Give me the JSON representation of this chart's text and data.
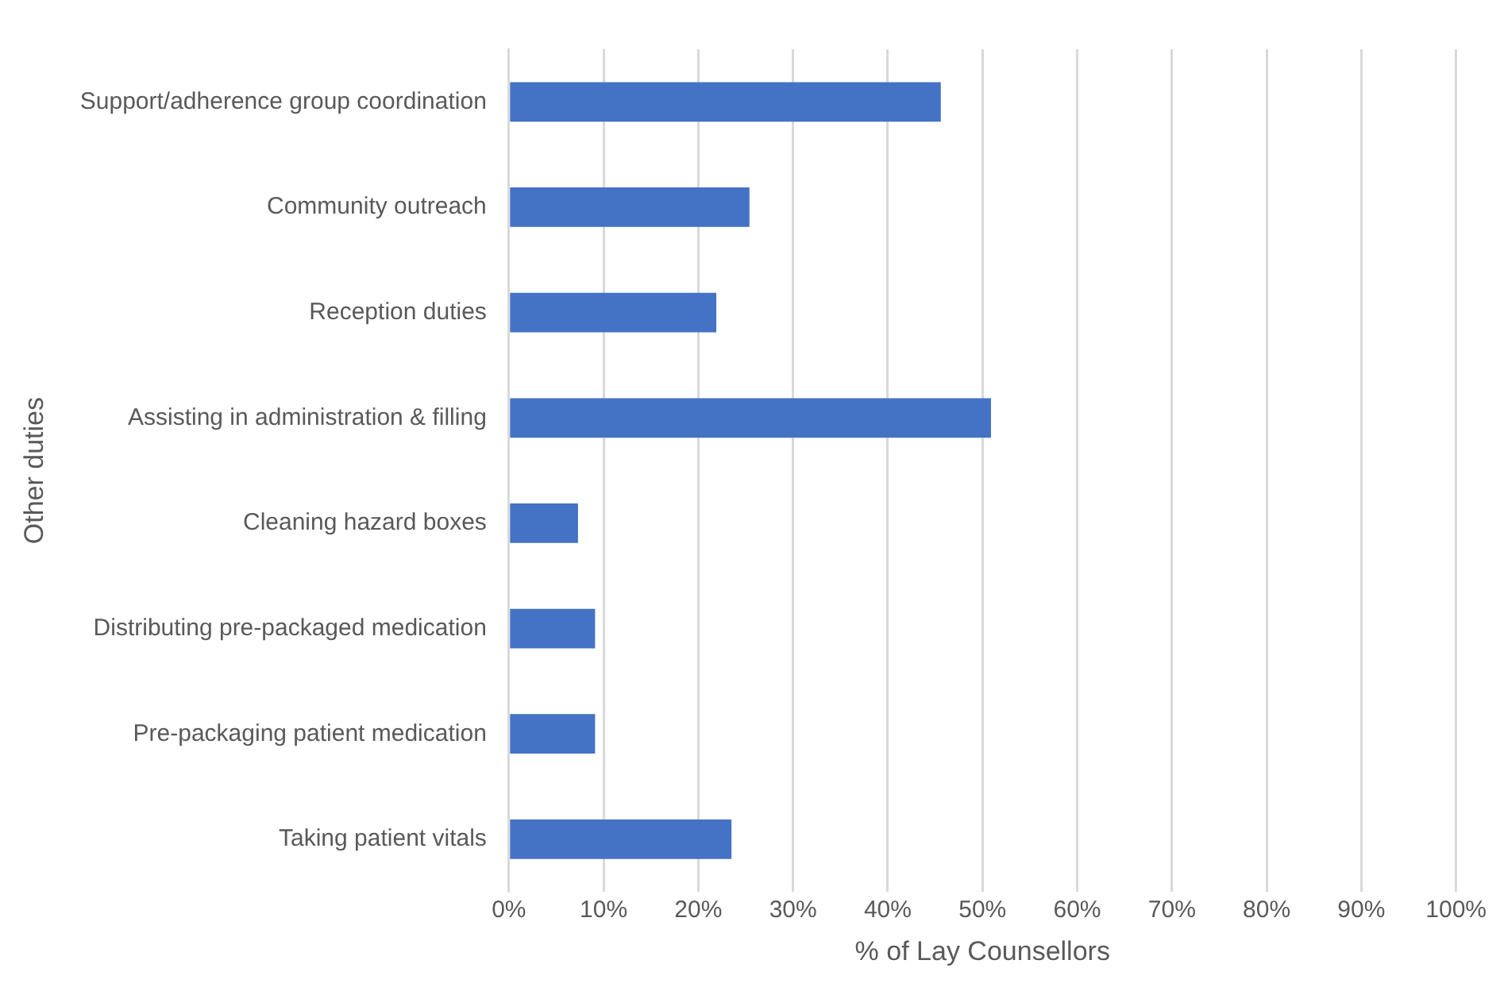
{
  "chart_data": {
    "type": "bar",
    "orientation": "horizontal",
    "xlabel": "% of Lay Counsellors",
    "ylabel": "Other duties",
    "categories": [
      "Support/adherence group coordination",
      "Community outreach",
      "Reception duties",
      "Assisting in administration & filling",
      "Cleaning hazard boxes",
      "Distributing pre-packaged medication",
      "Pre-packaging patient medication",
      "Taking patient vitals"
    ],
    "values": [
      45.6,
      25.4,
      21.9,
      50.9,
      7.3,
      9.1,
      9.1,
      23.5
    ],
    "color": "#4472c4",
    "xlim": [
      0,
      100
    ],
    "xticks": [
      {
        "value": 0,
        "label": "0%"
      },
      {
        "value": 10,
        "label": "10%"
      },
      {
        "value": 20,
        "label": "20%"
      },
      {
        "value": 30,
        "label": "30%"
      },
      {
        "value": 40,
        "label": "40%"
      },
      {
        "value": 50,
        "label": "50%"
      },
      {
        "value": 60,
        "label": "60%"
      },
      {
        "value": 70,
        "label": "70%"
      },
      {
        "value": 80,
        "label": "80%"
      },
      {
        "value": 90,
        "label": "90%"
      },
      {
        "value": 100,
        "label": "100%"
      }
    ],
    "grid": "x"
  }
}
